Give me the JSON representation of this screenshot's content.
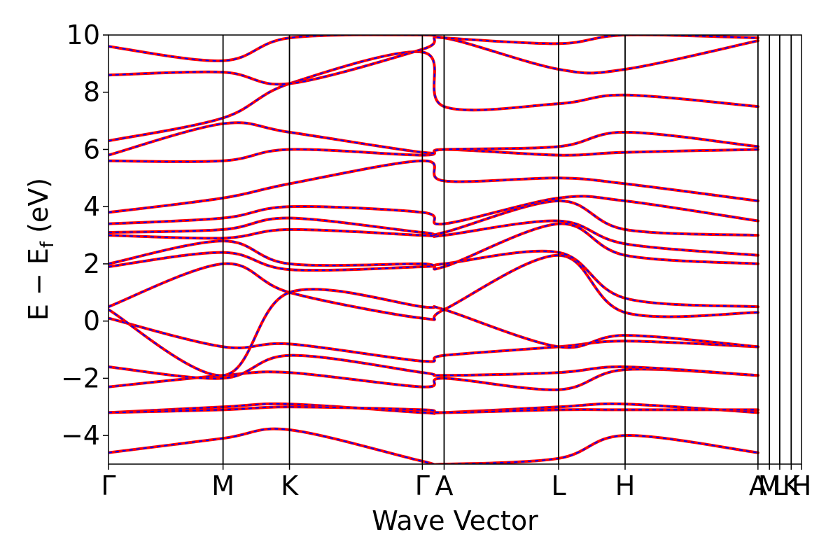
{
  "chart_data": {
    "type": "line",
    "title": "",
    "xlabel": "Wave Vector",
    "ylabel": "E − E",
    "ylabel_sub": "f",
    "ylabel_unit": " (eV)",
    "ylim": [
      -5,
      10
    ],
    "yticks": [
      {
        "value": 10,
        "label": "10"
      },
      {
        "value": 8,
        "label": "8"
      },
      {
        "value": 6,
        "label": "6"
      },
      {
        "value": 4,
        "label": "4"
      },
      {
        "value": 2,
        "label": "2"
      },
      {
        "value": 0,
        "label": "0"
      },
      {
        "value": -2,
        "label": "−2"
      },
      {
        "value": -4,
        "label": "−4"
      }
    ],
    "xlim": [
      0,
      6.05
    ],
    "kpoints": [
      {
        "label": "Γ",
        "x": 0.0
      },
      {
        "label": "M",
        "x": 1.0
      },
      {
        "label": "K",
        "x": 1.58
      },
      {
        "label": "Γ",
        "x": 2.74
      },
      {
        "label": "A",
        "x": 2.93
      },
      {
        "label": "L",
        "x": 3.93
      },
      {
        "label": "H",
        "x": 4.51
      },
      {
        "label": "A",
        "x": 5.67
      },
      {
        "label": "M",
        "x": 5.77
      },
      {
        "label": "L",
        "x": 5.86
      },
      {
        "label": "K",
        "x": 5.96
      },
      {
        "label": "H",
        "x": 6.05
      }
    ],
    "grid": false,
    "legend": "none",
    "series_style": [
      {
        "name": "",
        "color": "#ff0000",
        "linestyle": "solid"
      },
      {
        "name": "",
        "color": "#0000ff",
        "linestyle": "dashed"
      }
    ],
    "bands": [
      {
        "x": [
          0,
          1.0,
          1.58,
          2.74,
          2.93,
          3.93,
          4.51,
          5.67
        ],
        "y": [
          -4.6,
          -4.1,
          -3.8,
          -4.9,
          -5.0,
          -4.8,
          -4.0,
          -4.6
        ]
      },
      {
        "x": [
          0,
          1.0,
          1.58,
          2.74,
          2.93,
          3.93,
          4.51,
          5.67
        ],
        "y": [
          -3.2,
          -3.0,
          -2.9,
          -3.2,
          -3.2,
          -3.0,
          -2.9,
          -3.2
        ]
      },
      {
        "x": [
          0,
          1.0,
          1.58,
          2.74,
          2.93,
          3.93,
          4.51,
          5.67
        ],
        "y": [
          -3.2,
          -3.1,
          -3.0,
          -3.1,
          -3.2,
          -3.1,
          -3.1,
          -3.1
        ]
      },
      {
        "x": [
          0,
          1.0,
          1.58,
          2.74,
          2.93,
          3.93,
          4.51,
          5.67
        ],
        "y": [
          -2.3,
          -1.9,
          -1.8,
          -2.3,
          -2.0,
          -2.4,
          -1.7,
          -1.9
        ]
      },
      {
        "x": [
          0,
          1.0,
          1.58,
          2.74,
          2.93,
          3.93,
          4.51,
          5.67
        ],
        "y": [
          -1.6,
          -2.0,
          -1.2,
          -1.8,
          -1.9,
          -1.8,
          -1.6,
          -1.9
        ]
      },
      {
        "x": [
          0,
          1.0,
          1.58,
          2.74,
          2.93,
          3.93,
          4.51,
          5.67
        ],
        "y": [
          0.1,
          -0.9,
          -0.8,
          -1.4,
          -1.2,
          -0.9,
          -0.7,
          -0.9
        ]
      },
      {
        "x": [
          0,
          1.0,
          1.58,
          2.74,
          2.93,
          3.93,
          4.51,
          5.67
        ],
        "y": [
          0.4,
          -1.9,
          1.0,
          0.5,
          0.4,
          -0.9,
          -0.5,
          -0.9
        ]
      },
      {
        "x": [
          0,
          1.0,
          1.58,
          2.74,
          2.93,
          3.93,
          4.51,
          5.67
        ],
        "y": [
          0.5,
          2.0,
          1.0,
          0.1,
          0.4,
          2.3,
          0.3,
          0.3
        ]
      },
      {
        "x": [
          0,
          1.0,
          1.58,
          2.74,
          2.93,
          3.93,
          4.51,
          5.67
        ],
        "y": [
          1.9,
          2.4,
          1.8,
          1.9,
          2.0,
          2.4,
          0.8,
          0.5
        ]
      },
      {
        "x": [
          0,
          1.0,
          1.58,
          2.74,
          2.93,
          3.93,
          4.51,
          5.67
        ],
        "y": [
          2.0,
          2.8,
          2.0,
          2.0,
          1.9,
          3.4,
          2.3,
          2.0
        ]
      },
      {
        "x": [
          0,
          1.0,
          1.58,
          2.74,
          2.93,
          3.93,
          4.51,
          5.67
        ],
        "y": [
          3.0,
          2.9,
          3.2,
          3.0,
          3.0,
          3.5,
          2.7,
          2.3
        ]
      },
      {
        "x": [
          0,
          1.0,
          1.58,
          2.74,
          2.93,
          3.93,
          4.51,
          5.67
        ],
        "y": [
          3.1,
          3.2,
          3.6,
          3.1,
          3.1,
          4.2,
          3.2,
          3.0
        ]
      },
      {
        "x": [
          0,
          1.0,
          1.58,
          2.74,
          2.93,
          3.93,
          4.51,
          5.67
        ],
        "y": [
          3.4,
          3.6,
          4.0,
          3.8,
          3.4,
          4.3,
          4.2,
          3.5
        ]
      },
      {
        "x": [
          0,
          1.0,
          1.58,
          2.74,
          2.93,
          3.93,
          4.51,
          5.67
        ],
        "y": [
          3.8,
          4.3,
          4.8,
          5.6,
          4.9,
          5.0,
          4.8,
          4.2
        ]
      },
      {
        "x": [
          0,
          1.0,
          1.58,
          2.74,
          2.93,
          3.93,
          4.51,
          5.67
        ],
        "y": [
          5.6,
          5.6,
          6.0,
          5.8,
          6.0,
          5.8,
          5.9,
          6.0
        ]
      },
      {
        "x": [
          0,
          1.0,
          1.58,
          2.74,
          2.93,
          3.93,
          4.51,
          5.67
        ],
        "y": [
          5.8,
          6.9,
          6.6,
          5.9,
          6.0,
          6.1,
          6.6,
          6.1
        ]
      },
      {
        "x": [
          0,
          1.0,
          1.58,
          2.74,
          2.93,
          3.93,
          4.51,
          5.67
        ],
        "y": [
          6.3,
          7.1,
          8.3,
          9.4,
          7.5,
          7.6,
          7.9,
          7.5
        ]
      },
      {
        "x": [
          0,
          1.0,
          1.58,
          2.74,
          2.93,
          3.93,
          4.51,
          5.67
        ],
        "y": [
          8.6,
          8.7,
          8.3,
          9.5,
          9.9,
          8.8,
          8.8,
          9.8
        ]
      },
      {
        "x": [
          0,
          1.0,
          1.58,
          2.74,
          2.93,
          3.93,
          4.51,
          5.67
        ],
        "y": [
          9.6,
          9.1,
          9.9,
          10.0,
          9.9,
          9.7,
          10.0,
          9.9
        ]
      }
    ]
  }
}
